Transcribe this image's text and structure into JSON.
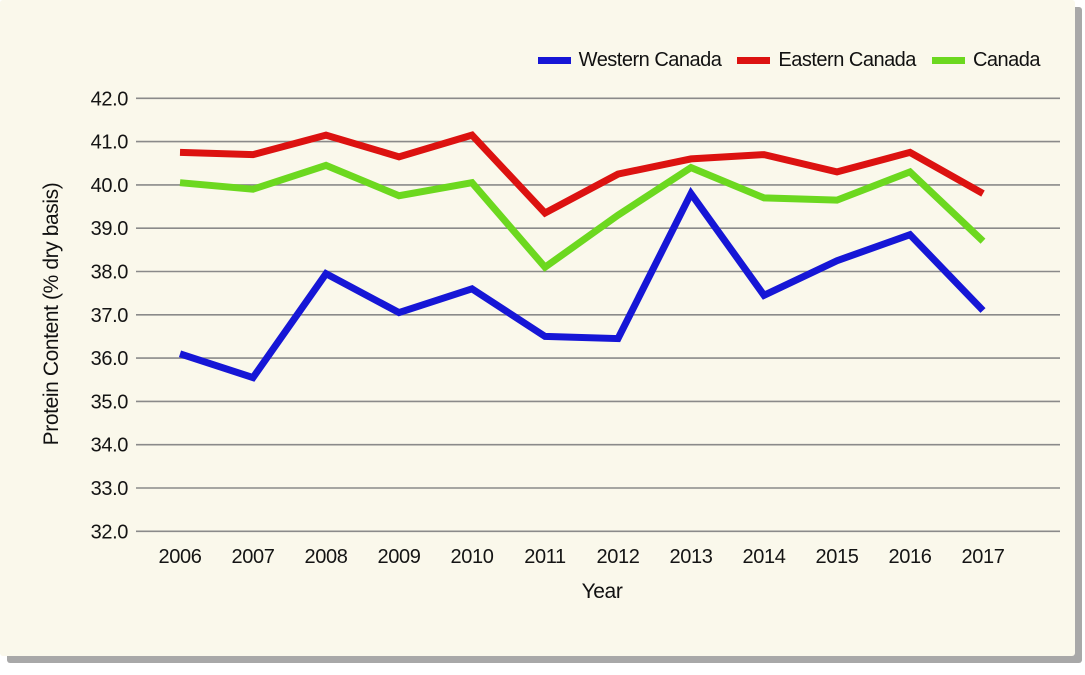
{
  "card": {
    "background": "#FAF8EB",
    "shadow_color": "#A8A8A8"
  },
  "chart_data": {
    "type": "line",
    "title": "",
    "xlabel": "Year",
    "ylabel": "Protein Content (% dry basis)",
    "categories": [
      "2006",
      "2007",
      "2008",
      "2009",
      "2010",
      "2011",
      "2012",
      "2013",
      "2014",
      "2015",
      "2016",
      "2017"
    ],
    "series": [
      {
        "name": "Western Canada",
        "color": "#1616D6",
        "values": [
          36.1,
          35.55,
          37.95,
          37.05,
          37.6,
          36.5,
          36.45,
          39.8,
          37.45,
          38.25,
          38.85,
          37.1
        ]
      },
      {
        "name": "Eastern Canada",
        "color": "#DC1210",
        "values": [
          40.75,
          40.7,
          41.15,
          40.65,
          41.15,
          39.35,
          40.25,
          40.6,
          40.7,
          40.3,
          40.75,
          39.8
        ]
      },
      {
        "name": "Canada",
        "color": "#6CD81F",
        "values": [
          40.05,
          39.9,
          40.45,
          39.75,
          40.05,
          38.1,
          39.3,
          40.4,
          39.7,
          39.65,
          40.3,
          38.7
        ]
      }
    ],
    "ylim": [
      32.0,
      42.0
    ],
    "ytick_labels": [
      "42.0",
      "41.0",
      "40.0",
      "39.0",
      "38.0",
      "37.0",
      "36.0",
      "35.0",
      "34.0",
      "33.0",
      "32.0"
    ],
    "grid": true,
    "gridline_color": "#8A8A8A",
    "text_color": "#141414",
    "line_width": 7,
    "legend_position": "top-right"
  }
}
